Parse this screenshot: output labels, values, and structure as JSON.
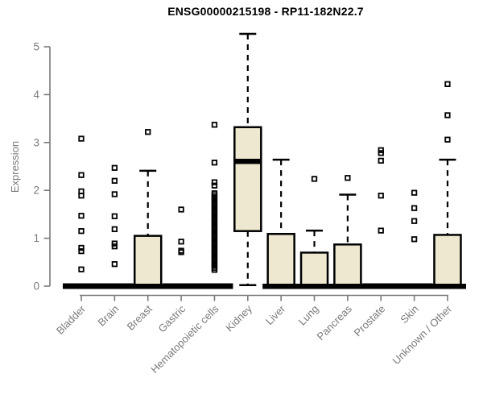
{
  "chart_data": {
    "type": "boxplot",
    "title": "ENSG00000215198 - RP11-182N22.7",
    "ylabel": "Expression",
    "xlabel": "",
    "ylim": [
      0,
      5.3
    ],
    "yticks": [
      0,
      1,
      2,
      3,
      4,
      5
    ],
    "grid": false,
    "legend": "none",
    "categories": [
      "Bladder",
      "Brain",
      "Breast",
      "Gastric",
      "Hematopoietic cells",
      "Kidney",
      "Liver",
      "Lung",
      "Pancreas",
      "Prostate",
      "Skin",
      "Unknown / Other"
    ],
    "boxes": [
      {
        "q1": 0,
        "median": 0,
        "q3": 0,
        "whisker_low": 0,
        "whisker_high": 0,
        "outliers": [
          0.35,
          0.73,
          0.8,
          1.15,
          1.47,
          1.89,
          1.98,
          2.32,
          3.08
        ]
      },
      {
        "q1": 0,
        "median": 0,
        "q3": 0,
        "whisker_low": 0,
        "whisker_high": 0,
        "outliers": [
          0.46,
          0.83,
          0.89,
          1.19,
          1.46,
          1.92,
          2.2,
          2.47
        ]
      },
      {
        "q1": 0,
        "median": 0,
        "q3": 1.05,
        "whisker_low": 0,
        "whisker_high": 2.41,
        "outliers": [
          3.22
        ]
      },
      {
        "q1": 0,
        "median": 0,
        "q3": 0,
        "whisker_low": 0,
        "whisker_high": 0,
        "outliers": [
          0.71,
          0.74,
          0.93,
          1.6
        ]
      },
      {
        "q1": 0,
        "median": 0,
        "q3": 0,
        "whisker_low": 0,
        "whisker_high": 0,
        "outliers": [
          0.34,
          0.38,
          0.42,
          0.46,
          0.5,
          0.54,
          0.58,
          0.62,
          0.66,
          0.7,
          0.74,
          0.78,
          0.82,
          0.86,
          0.9,
          0.94,
          0.98,
          1.02,
          1.06,
          1.1,
          1.14,
          1.18,
          1.22,
          1.26,
          1.3,
          1.34,
          1.38,
          1.42,
          1.46,
          1.5,
          1.54,
          1.58,
          1.62,
          1.66,
          1.7,
          1.74,
          1.78,
          1.82,
          1.86,
          1.9,
          1.94,
          2.1,
          2.17,
          2.58,
          3.37
        ]
      },
      {
        "q1": 1.15,
        "median": 2.61,
        "q3": 3.32,
        "whisker_low": 0.02,
        "whisker_high": 5.27,
        "outliers": []
      },
      {
        "q1": 0,
        "median": 0,
        "q3": 1.09,
        "whisker_low": 0,
        "whisker_high": 2.64,
        "outliers": []
      },
      {
        "q1": 0,
        "median": 0,
        "q3": 0.7,
        "whisker_low": 0,
        "whisker_high": 1.16,
        "outliers": [
          2.24
        ]
      },
      {
        "q1": 0,
        "median": 0,
        "q3": 0.87,
        "whisker_low": 0,
        "whisker_high": 1.91,
        "outliers": [
          2.26
        ]
      },
      {
        "q1": 0,
        "median": 0,
        "q3": 0,
        "whisker_low": 0,
        "whisker_high": 0,
        "outliers": [
          1.16,
          1.89,
          2.62,
          2.78,
          2.84
        ]
      },
      {
        "q1": 0,
        "median": 0,
        "q3": 0,
        "whisker_low": 0,
        "whisker_high": 0,
        "outliers": [
          0.98,
          1.36,
          1.63,
          1.95
        ]
      },
      {
        "q1": 0,
        "median": 0,
        "q3": 1.07,
        "whisker_low": 0,
        "whisker_high": 2.64,
        "outliers": [
          3.06,
          3.57,
          4.22
        ]
      }
    ],
    "colors": {
      "box_fill": "#EDE8CF",
      "box_stroke": "#000000",
      "axis": "#7A7A7A",
      "title": "#000000"
    }
  }
}
